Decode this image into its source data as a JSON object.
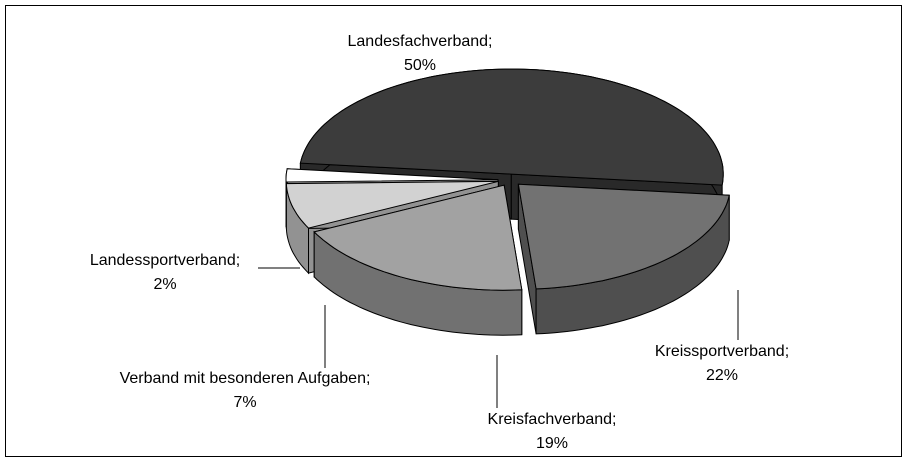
{
  "chart_data": {
    "type": "pie3d",
    "categories": [
      "Landesfachverband;",
      "Kreissportverband;",
      "Kreisfachverband;",
      "Verband mit besonderen Aufgaben;",
      "Landessportverband;"
    ],
    "values": [
      50,
      22,
      19,
      7,
      2
    ],
    "value_labels": [
      "50%",
      "22%",
      "19%",
      "7%",
      "2%"
    ],
    "colors": [
      "#3c3c3c",
      "#727272",
      "#a2a2a2",
      "#d2d2d2",
      "#ffffff"
    ]
  }
}
